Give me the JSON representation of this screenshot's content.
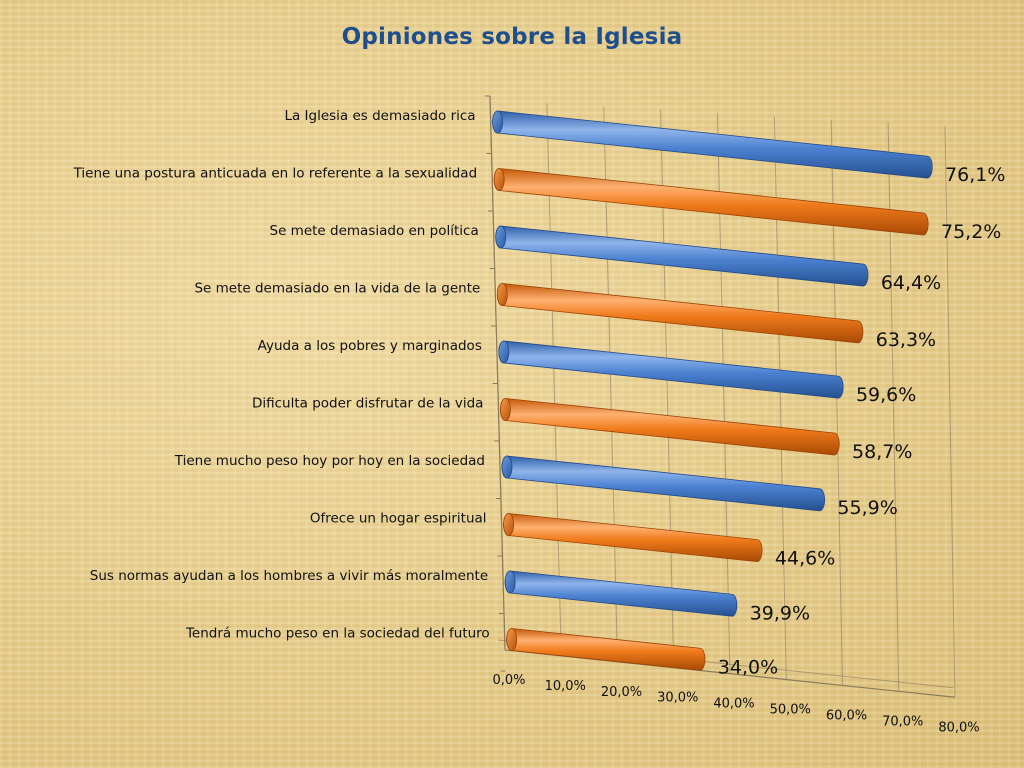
{
  "chart_data": {
    "type": "bar",
    "orientation": "horizontal",
    "title": "Opiniones sobre la Iglesia",
    "categories": [
      "La Iglesia es demasiado rica",
      "Tiene una postura anticuada en lo referente a la sexualidad",
      "Se mete demasiado en política",
      "Se mete demasiado en la vida de la gente",
      "Ayuda a los pobres y marginados",
      "Dificulta poder disfrutar de la vida",
      "Tiene mucho peso hoy por hoy en la sociedad",
      "Ofrece un hogar espiritual",
      "Sus normas ayudan a los hombres a vivir más moralmente",
      "Tendrá mucho peso en la sociedad del futuro"
    ],
    "values": [
      76.1,
      75.2,
      64.4,
      63.3,
      59.6,
      58.7,
      55.9,
      44.6,
      39.9,
      34.0
    ],
    "value_labels": [
      "76,1%",
      "75,2%",
      "64,4%",
      "63,3%",
      "59,6%",
      "58,7%",
      "55,9%",
      "44,6%",
      "39,9%",
      "34,0%"
    ],
    "xlim": [
      0,
      80
    ],
    "ticks": [
      "0,0%",
      "10,0%",
      "20,0%",
      "30,0%",
      "40,0%",
      "50,0%",
      "60,0%",
      "70,0%",
      "80,0%"
    ],
    "grid": true,
    "legend": "none",
    "colors": [
      "#4a7fd0",
      "#f07a1a"
    ]
  }
}
